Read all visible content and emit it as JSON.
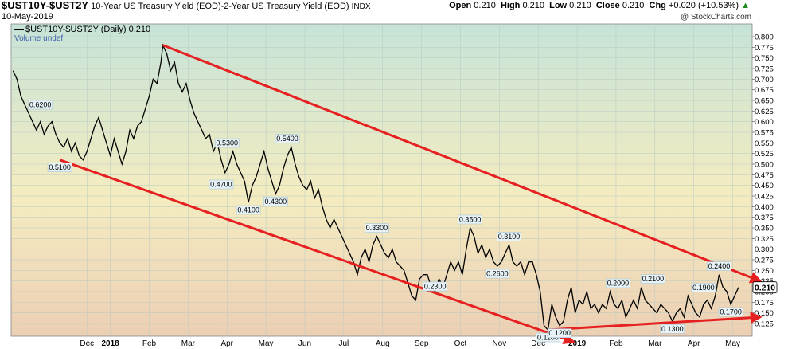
{
  "header": {
    "symbol": "$UST10Y-$UST2Y",
    "description": "10-Year US Treasury Yield (EOD)-2-Year US Treasury Yield (EOD)",
    "exchange": "INDX",
    "date": "10-May-2019",
    "open_label": "Open",
    "open": "0.210",
    "high_label": "High",
    "high": "0.210",
    "low_label": "Low",
    "low": "0.210",
    "close_label": "Close",
    "close": "0.210",
    "chg_label": "Chg",
    "chg": "+0.020 (+10.53%)",
    "up_arrow": "▲",
    "credit": "@ StockCharts.com"
  },
  "legend": {
    "series_label": "$UST10Y-$UST2Y (Daily) 0.210",
    "volume_label": "Volume undef"
  },
  "colors": {
    "line": "#000000",
    "trend": "#e62020",
    "bg_top": "#c6e3d8",
    "bg_mid": "#f4ecc0",
    "bg_bot": "#eccfb4",
    "label_bg": "#e6f2f6",
    "label_border": "#a9c6d6"
  },
  "chart_data": {
    "type": "line",
    "ylim": [
      0.095,
      0.83
    ],
    "y_ticks": [
      "0.800",
      "0.775",
      "0.750",
      "0.725",
      "0.700",
      "0.675",
      "0.650",
      "0.625",
      "0.600",
      "0.575",
      "0.550",
      "0.525",
      "0.500",
      "0.475",
      "0.450",
      "0.425",
      "0.400",
      "0.375",
      "0.350",
      "0.325",
      "0.300",
      "0.275",
      "0.250",
      "0.225",
      "0.200",
      "0.175",
      "0.150",
      "0.125"
    ],
    "last_value_label": "0.210",
    "x_labels": [
      {
        "t": 0.4,
        "label": "Dec"
      },
      {
        "t": 1.0,
        "label": "2018"
      },
      {
        "t": 2.0,
        "label": "Feb"
      },
      {
        "t": 3.0,
        "label": "Mar"
      },
      {
        "t": 4.0,
        "label": "Apr"
      },
      {
        "t": 5.0,
        "label": "May"
      },
      {
        "t": 6.0,
        "label": "Jun"
      },
      {
        "t": 7.0,
        "label": "Jul"
      },
      {
        "t": 8.0,
        "label": "Aug"
      },
      {
        "t": 9.0,
        "label": "Sep"
      },
      {
        "t": 10.0,
        "label": "Oct"
      },
      {
        "t": 11.0,
        "label": "Nov"
      },
      {
        "t": 12.0,
        "label": "Dec"
      },
      {
        "t": 13.0,
        "label": "2019"
      },
      {
        "t": 14.0,
        "label": "Feb"
      },
      {
        "t": 15.0,
        "label": "Mar"
      },
      {
        "t": 16.0,
        "label": "Apr"
      },
      {
        "t": 17.0,
        "label": "May"
      }
    ],
    "x_unit": "months since mid-November 2017",
    "series": [
      {
        "name": "$UST10Y-$UST2Y",
        "points": [
          [
            -1.5,
            0.72
          ],
          [
            -1.4,
            0.7
          ],
          [
            -1.3,
            0.66
          ],
          [
            -1.2,
            0.64
          ],
          [
            -1.1,
            0.62
          ],
          [
            -1.0,
            0.6
          ],
          [
            -0.9,
            0.58
          ],
          [
            -0.8,
            0.6
          ],
          [
            -0.7,
            0.57
          ],
          [
            -0.6,
            0.59
          ],
          [
            -0.5,
            0.6
          ],
          [
            -0.4,
            0.57
          ],
          [
            -0.3,
            0.55
          ],
          [
            -0.2,
            0.54
          ],
          [
            -0.1,
            0.56
          ],
          [
            0.0,
            0.53
          ],
          [
            0.1,
            0.55
          ],
          [
            0.2,
            0.52
          ],
          [
            0.3,
            0.51
          ],
          [
            0.4,
            0.53
          ],
          [
            0.5,
            0.56
          ],
          [
            0.6,
            0.59
          ],
          [
            0.7,
            0.61
          ],
          [
            0.8,
            0.58
          ],
          [
            0.9,
            0.55
          ],
          [
            1.0,
            0.52
          ],
          [
            1.1,
            0.56
          ],
          [
            1.2,
            0.53
          ],
          [
            1.3,
            0.5
          ],
          [
            1.4,
            0.53
          ],
          [
            1.5,
            0.58
          ],
          [
            1.6,
            0.56
          ],
          [
            1.7,
            0.59
          ],
          [
            1.8,
            0.6
          ],
          [
            1.9,
            0.63
          ],
          [
            2.0,
            0.66
          ],
          [
            2.1,
            0.7
          ],
          [
            2.2,
            0.69
          ],
          [
            2.3,
            0.74
          ],
          [
            2.35,
            0.78
          ],
          [
            2.45,
            0.76
          ],
          [
            2.55,
            0.72
          ],
          [
            2.65,
            0.74
          ],
          [
            2.75,
            0.69
          ],
          [
            2.85,
            0.67
          ],
          [
            2.95,
            0.69
          ],
          [
            3.05,
            0.65
          ],
          [
            3.15,
            0.62
          ],
          [
            3.25,
            0.6
          ],
          [
            3.35,
            0.58
          ],
          [
            3.45,
            0.56
          ],
          [
            3.55,
            0.57
          ],
          [
            3.65,
            0.53
          ],
          [
            3.75,
            0.55
          ],
          [
            3.85,
            0.51
          ],
          [
            3.95,
            0.48
          ],
          [
            4.05,
            0.5
          ],
          [
            4.15,
            0.53
          ],
          [
            4.25,
            0.5
          ],
          [
            4.35,
            0.48
          ],
          [
            4.45,
            0.46
          ],
          [
            4.55,
            0.41
          ],
          [
            4.65,
            0.45
          ],
          [
            4.75,
            0.47
          ],
          [
            4.85,
            0.5
          ],
          [
            4.95,
            0.53
          ],
          [
            5.05,
            0.49
          ],
          [
            5.15,
            0.46
          ],
          [
            5.25,
            0.43
          ],
          [
            5.35,
            0.45
          ],
          [
            5.45,
            0.49
          ],
          [
            5.55,
            0.52
          ],
          [
            5.65,
            0.54
          ],
          [
            5.75,
            0.5
          ],
          [
            5.85,
            0.47
          ],
          [
            5.95,
            0.45
          ],
          [
            6.05,
            0.44
          ],
          [
            6.15,
            0.46
          ],
          [
            6.25,
            0.42
          ],
          [
            6.35,
            0.44
          ],
          [
            6.45,
            0.4
          ],
          [
            6.55,
            0.37
          ],
          [
            6.65,
            0.35
          ],
          [
            6.75,
            0.37
          ],
          [
            6.85,
            0.35
          ],
          [
            6.95,
            0.33
          ],
          [
            7.05,
            0.31
          ],
          [
            7.15,
            0.29
          ],
          [
            7.25,
            0.27
          ],
          [
            7.35,
            0.24
          ],
          [
            7.45,
            0.28
          ],
          [
            7.55,
            0.3
          ],
          [
            7.65,
            0.27
          ],
          [
            7.75,
            0.31
          ],
          [
            7.85,
            0.33
          ],
          [
            7.95,
            0.31
          ],
          [
            8.05,
            0.29
          ],
          [
            8.15,
            0.28
          ],
          [
            8.25,
            0.3
          ],
          [
            8.35,
            0.27
          ],
          [
            8.45,
            0.26
          ],
          [
            8.55,
            0.25
          ],
          [
            8.65,
            0.22
          ],
          [
            8.75,
            0.19
          ],
          [
            8.85,
            0.18
          ],
          [
            8.95,
            0.23
          ],
          [
            9.05,
            0.24
          ],
          [
            9.15,
            0.24
          ],
          [
            9.25,
            0.21
          ],
          [
            9.35,
            0.2
          ],
          [
            9.45,
            0.23
          ],
          [
            9.55,
            0.21
          ],
          [
            9.65,
            0.24
          ],
          [
            9.75,
            0.27
          ],
          [
            9.85,
            0.25
          ],
          [
            9.95,
            0.27
          ],
          [
            10.05,
            0.24
          ],
          [
            10.15,
            0.3
          ],
          [
            10.25,
            0.35
          ],
          [
            10.35,
            0.33
          ],
          [
            10.45,
            0.29
          ],
          [
            10.55,
            0.31
          ],
          [
            10.65,
            0.28
          ],
          [
            10.75,
            0.3
          ],
          [
            10.85,
            0.27
          ],
          [
            10.95,
            0.26
          ],
          [
            11.05,
            0.27
          ],
          [
            11.15,
            0.29
          ],
          [
            11.25,
            0.31
          ],
          [
            11.35,
            0.27
          ],
          [
            11.45,
            0.26
          ],
          [
            11.55,
            0.27
          ],
          [
            11.65,
            0.24
          ],
          [
            11.75,
            0.27
          ],
          [
            11.85,
            0.27
          ],
          [
            11.95,
            0.24
          ],
          [
            12.05,
            0.2
          ],
          [
            12.15,
            0.12
          ],
          [
            12.25,
            0.11
          ],
          [
            12.35,
            0.17
          ],
          [
            12.45,
            0.14
          ],
          [
            12.55,
            0.12
          ],
          [
            12.65,
            0.13
          ],
          [
            12.75,
            0.18
          ],
          [
            12.85,
            0.21
          ],
          [
            12.95,
            0.15
          ],
          [
            13.05,
            0.18
          ],
          [
            13.15,
            0.17
          ],
          [
            13.25,
            0.2
          ],
          [
            13.35,
            0.16
          ],
          [
            13.45,
            0.17
          ],
          [
            13.55,
            0.15
          ],
          [
            13.65,
            0.17
          ],
          [
            13.75,
            0.16
          ],
          [
            13.85,
            0.2
          ],
          [
            13.95,
            0.17
          ],
          [
            14.05,
            0.16
          ],
          [
            14.15,
            0.18
          ],
          [
            14.25,
            0.14
          ],
          [
            14.35,
            0.16
          ],
          [
            14.45,
            0.18
          ],
          [
            14.55,
            0.16
          ],
          [
            14.65,
            0.21
          ],
          [
            14.75,
            0.18
          ],
          [
            14.85,
            0.17
          ],
          [
            14.95,
            0.16
          ],
          [
            15.05,
            0.15
          ],
          [
            15.15,
            0.17
          ],
          [
            15.25,
            0.16
          ],
          [
            15.35,
            0.15
          ],
          [
            15.45,
            0.13
          ],
          [
            15.55,
            0.15
          ],
          [
            15.65,
            0.16
          ],
          [
            15.75,
            0.14
          ],
          [
            15.85,
            0.19
          ],
          [
            15.95,
            0.17
          ],
          [
            16.05,
            0.15
          ],
          [
            16.15,
            0.14
          ],
          [
            16.25,
            0.17
          ],
          [
            16.35,
            0.18
          ],
          [
            16.45,
            0.16
          ],
          [
            16.55,
            0.19
          ],
          [
            16.65,
            0.24
          ],
          [
            16.75,
            0.21
          ],
          [
            16.85,
            0.2
          ],
          [
            16.95,
            0.17
          ],
          [
            17.05,
            0.19
          ],
          [
            17.15,
            0.21
          ]
        ]
      }
    ],
    "annotations": [
      {
        "x": -0.8,
        "y": 0.62,
        "label": "0.6200"
      },
      {
        "x": -0.3,
        "y": 0.51,
        "label": "0.5100"
      },
      {
        "x": 4.0,
        "y": 0.53,
        "label": "0.5300"
      },
      {
        "x": 3.85,
        "y": 0.47,
        "label": "0.4700"
      },
      {
        "x": 4.55,
        "y": 0.41,
        "label": "0.4100"
      },
      {
        "x": 5.55,
        "y": 0.54,
        "label": "0.5400"
      },
      {
        "x": 5.25,
        "y": 0.43,
        "label": "0.4300"
      },
      {
        "x": 7.85,
        "y": 0.33,
        "label": "0.3300"
      },
      {
        "x": 10.25,
        "y": 0.35,
        "label": "0.3500"
      },
      {
        "x": 9.35,
        "y": 0.23,
        "label": "0.2300"
      },
      {
        "x": 11.25,
        "y": 0.31,
        "label": "0.3100"
      },
      {
        "x": 10.95,
        "y": 0.26,
        "label": "0.2600"
      },
      {
        "x": 12.25,
        "y": 0.11,
        "label": "0.1100"
      },
      {
        "x": 12.55,
        "y": 0.12,
        "label": "0.1200"
      },
      {
        "x": 14.05,
        "y": 0.2,
        "label": "0.2000"
      },
      {
        "x": 14.95,
        "y": 0.21,
        "label": "0.2100"
      },
      {
        "x": 15.45,
        "y": 0.13,
        "label": "0.1300"
      },
      {
        "x": 16.25,
        "y": 0.19,
        "label": "0.1900"
      },
      {
        "x": 16.65,
        "y": 0.24,
        "label": "0.2400"
      },
      {
        "x": 16.95,
        "y": 0.17,
        "label": "0.1700"
      }
    ],
    "trendlines": [
      {
        "from": [
          2.35,
          0.78
        ],
        "to": [
          17.7,
          0.225
        ]
      },
      {
        "from": [
          -0.3,
          0.51
        ],
        "to": [
          12.9,
          0.082
        ]
      },
      {
        "from": [
          12.25,
          0.11
        ],
        "to": [
          17.7,
          0.14
        ]
      }
    ]
  }
}
